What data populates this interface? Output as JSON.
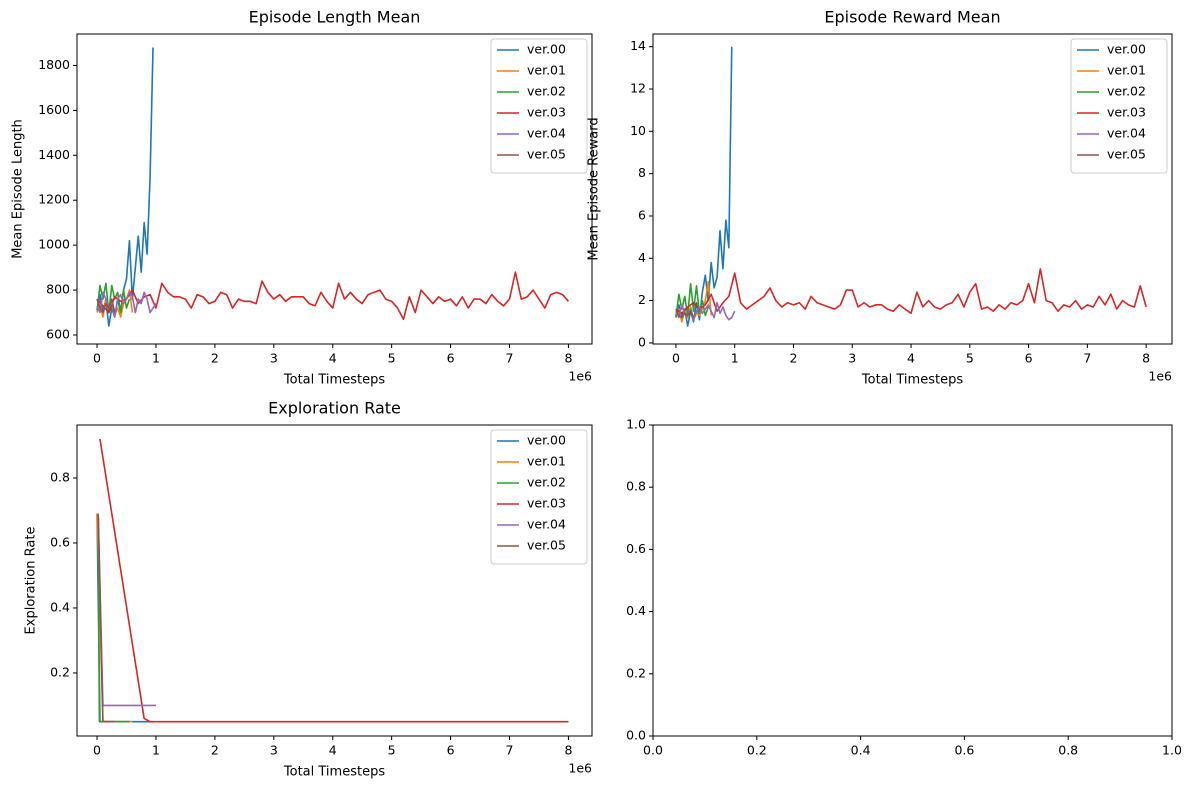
{
  "chart_data": [
    {
      "type": "line",
      "title": "Episode Length Mean",
      "xlabel": "Total Timesteps",
      "ylabel": "Mean Episode Length",
      "x_offset_label": "1e6",
      "xlim": [
        -0.34,
        8.4
      ],
      "xticks": [
        0,
        1,
        2,
        3,
        4,
        5,
        6,
        7,
        8
      ],
      "ylim": [
        560,
        1940
      ],
      "yticks": [
        600,
        800,
        1000,
        1200,
        1400,
        1600,
        1800
      ],
      "legend": "upper right",
      "series": [
        {
          "name": "ver.00",
          "color": "#1f77b4",
          "x": [
            0,
            0.05,
            0.1,
            0.15,
            0.2,
            0.25,
            0.3,
            0.35,
            0.4,
            0.45,
            0.5,
            0.55,
            0.6,
            0.65,
            0.7,
            0.75,
            0.8,
            0.85,
            0.9,
            0.95
          ],
          "values": [
            710,
            780,
            700,
            760,
            640,
            720,
            680,
            760,
            700,
            800,
            850,
            1020,
            760,
            900,
            1040,
            880,
            1100,
            960,
            1300,
            1880
          ]
        },
        {
          "name": "ver.01",
          "color": "#ff7f0e",
          "x": [
            0,
            0.05,
            0.1,
            0.15,
            0.2,
            0.25,
            0.3,
            0.35,
            0.4,
            0.45,
            0.5,
            0.55,
            0.6
          ],
          "values": [
            700,
            740,
            680,
            760,
            700,
            740,
            690,
            720,
            680,
            740,
            760,
            800,
            700
          ]
        },
        {
          "name": "ver.02",
          "color": "#2ca02c",
          "x": [
            0,
            0.05,
            0.1,
            0.15,
            0.2,
            0.25,
            0.3,
            0.35,
            0.4,
            0.45,
            0.5,
            0.55
          ],
          "values": [
            710,
            820,
            760,
            830,
            700,
            820,
            760,
            790,
            700,
            800,
            720,
            760
          ]
        },
        {
          "name": "ver.03",
          "color": "#d62728",
          "x": [
            0,
            0.1,
            0.2,
            0.3,
            0.4,
            0.5,
            0.6,
            0.7,
            0.8,
            0.9,
            1,
            1.1,
            1.2,
            1.3,
            1.4,
            1.5,
            1.6,
            1.7,
            1.8,
            1.9,
            2,
            2.1,
            2.2,
            2.3,
            2.4,
            2.5,
            2.6,
            2.7,
            2.8,
            2.9,
            3,
            3.1,
            3.2,
            3.3,
            3.4,
            3.5,
            3.6,
            3.7,
            3.8,
            3.9,
            4,
            4.1,
            4.2,
            4.3,
            4.4,
            4.5,
            4.6,
            4.7,
            4.8,
            4.9,
            5,
            5.1,
            5.2,
            5.3,
            5.4,
            5.5,
            5.6,
            5.7,
            5.8,
            5.9,
            6,
            6.1,
            6.2,
            6.3,
            6.4,
            6.5,
            6.6,
            6.7,
            6.8,
            6.9,
            7,
            7.1,
            7.2,
            7.3,
            7.4,
            7.5,
            7.6,
            7.7,
            7.8,
            7.9,
            8
          ],
          "values": [
            760,
            730,
            700,
            770,
            750,
            760,
            800,
            740,
            770,
            780,
            720,
            830,
            790,
            770,
            770,
            760,
            720,
            780,
            770,
            740,
            750,
            790,
            780,
            720,
            760,
            750,
            750,
            740,
            840,
            790,
            760,
            780,
            750,
            770,
            770,
            770,
            740,
            730,
            790,
            750,
            720,
            830,
            760,
            790,
            760,
            740,
            780,
            790,
            800,
            760,
            750,
            720,
            670,
            770,
            700,
            800,
            770,
            740,
            770,
            750,
            760,
            730,
            770,
            720,
            760,
            760,
            740,
            780,
            750,
            730,
            760,
            880,
            760,
            770,
            800,
            760,
            720,
            780,
            790,
            780,
            750
          ]
        },
        {
          "name": "ver.04",
          "color": "#9467bd",
          "x": [
            0,
            0.05,
            0.1,
            0.15,
            0.2,
            0.25,
            0.3,
            0.35,
            0.4,
            0.45,
            0.5,
            0.55,
            0.6,
            0.65,
            0.7,
            0.75,
            0.8,
            0.85,
            0.9,
            0.95,
            1
          ],
          "values": [
            730,
            700,
            790,
            760,
            720,
            750,
            680,
            760,
            780,
            740,
            760,
            790,
            770,
            700,
            760,
            740,
            790,
            760,
            700,
            720,
            740
          ]
        },
        {
          "name": "ver.05",
          "color": "#8c564b",
          "x": [
            0,
            0.05,
            0.1,
            0.15,
            0.2,
            0.25,
            0.3
          ],
          "values": [
            760,
            720,
            700,
            740,
            720,
            760,
            700
          ]
        }
      ]
    },
    {
      "type": "line",
      "title": "Episode Reward Mean",
      "xlabel": "Total Timesteps",
      "ylabel": "Mean Episode Reward",
      "x_offset_label": "1e6",
      "xlim": [
        -0.39,
        8.44
      ],
      "xticks": [
        0,
        1,
        2,
        3,
        4,
        5,
        6,
        7,
        8
      ],
      "ylim": [
        -0.05,
        14.6
      ],
      "yticks": [
        0,
        2,
        4,
        6,
        8,
        10,
        12,
        14
      ],
      "legend": "upper right",
      "series": [
        {
          "name": "ver.00",
          "color": "#1f77b4",
          "x": [
            0,
            0.05,
            0.1,
            0.15,
            0.2,
            0.25,
            0.3,
            0.35,
            0.4,
            0.45,
            0.5,
            0.55,
            0.6,
            0.65,
            0.7,
            0.75,
            0.8,
            0.85,
            0.9,
            0.95
          ],
          "values": [
            1.3,
            1.8,
            1.2,
            1.6,
            0.8,
            1.5,
            1.0,
            1.9,
            1.1,
            2.4,
            3.2,
            2.0,
            3.8,
            2.6,
            3.1,
            5.3,
            3.5,
            5.8,
            4.5,
            14.0
          ]
        },
        {
          "name": "ver.01",
          "color": "#ff7f0e",
          "x": [
            0,
            0.05,
            0.1,
            0.15,
            0.2,
            0.25,
            0.3,
            0.35,
            0.4,
            0.45,
            0.5,
            0.55,
            0.6
          ],
          "values": [
            1.2,
            1.6,
            1.0,
            1.5,
            1.2,
            1.7,
            1.1,
            1.4,
            1.3,
            1.6,
            2.0,
            2.9,
            1.3
          ]
        },
        {
          "name": "ver.02",
          "color": "#2ca02c",
          "x": [
            0,
            0.05,
            0.1,
            0.15,
            0.2,
            0.25,
            0.3,
            0.35,
            0.4,
            0.45,
            0.5,
            0.55
          ],
          "values": [
            1.2,
            2.3,
            1.6,
            2.2,
            1.3,
            2.8,
            1.5,
            2.7,
            1.4,
            2.0,
            1.3,
            1.7
          ]
        },
        {
          "name": "ver.03",
          "color": "#d62728",
          "x": [
            0,
            0.1,
            0.2,
            0.3,
            0.4,
            0.5,
            0.6,
            0.7,
            0.8,
            0.9,
            1,
            1.1,
            1.2,
            1.3,
            1.4,
            1.5,
            1.6,
            1.7,
            1.8,
            1.9,
            2,
            2.1,
            2.2,
            2.3,
            2.4,
            2.5,
            2.6,
            2.7,
            2.8,
            2.9,
            3,
            3.1,
            3.2,
            3.3,
            3.4,
            3.5,
            3.6,
            3.7,
            3.8,
            3.9,
            4,
            4.1,
            4.2,
            4.3,
            4.4,
            4.5,
            4.6,
            4.7,
            4.8,
            4.9,
            5,
            5.1,
            5.2,
            5.3,
            5.4,
            5.5,
            5.6,
            5.7,
            5.8,
            5.9,
            6,
            6.1,
            6.2,
            6.3,
            6.4,
            6.5,
            6.6,
            6.7,
            6.8,
            6.9,
            7,
            7.1,
            7.2,
            7.3,
            7.4,
            7.5,
            7.6,
            7.7,
            7.8,
            7.9,
            8
          ],
          "values": [
            1.6,
            1.4,
            1.7,
            1.9,
            1.6,
            1.8,
            2.3,
            1.5,
            1.9,
            2.2,
            3.3,
            1.9,
            1.6,
            1.8,
            2.0,
            2.2,
            2.6,
            2.0,
            1.7,
            1.9,
            1.8,
            1.9,
            1.6,
            2.2,
            1.9,
            1.8,
            1.7,
            1.6,
            1.8,
            2.5,
            2.5,
            1.7,
            1.9,
            1.7,
            1.8,
            1.8,
            1.6,
            1.5,
            1.8,
            1.6,
            1.4,
            2.4,
            1.7,
            2.0,
            1.7,
            1.6,
            1.8,
            1.9,
            2.3,
            1.7,
            2.4,
            2.8,
            1.6,
            1.7,
            1.5,
            1.8,
            1.6,
            1.9,
            1.8,
            2.0,
            2.8,
            1.9,
            3.5,
            2.0,
            1.9,
            1.5,
            1.8,
            1.7,
            2.0,
            1.6,
            1.8,
            1.7,
            2.2,
            1.8,
            2.3,
            1.6,
            2.0,
            1.8,
            1.7,
            2.7,
            1.7
          ]
        },
        {
          "name": "ver.04",
          "color": "#9467bd",
          "x": [
            0,
            0.05,
            0.1,
            0.15,
            0.2,
            0.25,
            0.3,
            0.35,
            0.4,
            0.45,
            0.5,
            0.55,
            0.6,
            0.65,
            0.7,
            0.75,
            0.8,
            0.85,
            0.9,
            0.95,
            1
          ],
          "values": [
            1.5,
            1.2,
            1.8,
            1.4,
            1.3,
            1.6,
            1.1,
            1.5,
            1.7,
            1.4,
            1.6,
            1.8,
            1.5,
            1.2,
            1.9,
            1.4,
            1.7,
            1.3,
            1.1,
            1.2,
            1.5
          ]
        },
        {
          "name": "ver.05",
          "color": "#8c564b",
          "x": [
            0,
            0.05,
            0.1,
            0.15,
            0.2,
            0.25,
            0.3
          ],
          "values": [
            1.6,
            1.3,
            1.2,
            1.4,
            1.3,
            1.5,
            1.2
          ]
        }
      ]
    },
    {
      "type": "line",
      "title": "Exploration Rate",
      "xlabel": "Total Timesteps",
      "ylabel": "Exploration Rate",
      "x_offset_label": "1e6",
      "xlim": [
        -0.34,
        8.4
      ],
      "xticks": [
        0,
        1,
        2,
        3,
        4,
        5,
        6,
        7,
        8
      ],
      "ylim": [
        0.006,
        0.963
      ],
      "yticks": [
        0.2,
        0.4,
        0.6,
        0.8
      ],
      "legend": "upper right",
      "series": [
        {
          "name": "ver.00",
          "color": "#1f77b4",
          "x": [
            0,
            0.05,
            0.1,
            0.95
          ],
          "values": [
            0.69,
            0.05,
            0.05,
            0.05
          ]
        },
        {
          "name": "ver.01",
          "color": "#ff7f0e",
          "x": [
            0,
            0.1,
            0.6
          ],
          "values": [
            0.69,
            0.05,
            0.05
          ]
        },
        {
          "name": "ver.02",
          "color": "#2ca02c",
          "x": [
            0.02,
            0.04,
            0.55
          ],
          "values": [
            0.69,
            0.05,
            0.05
          ]
        },
        {
          "name": "ver.03",
          "color": "#d62728",
          "x": [
            0.05,
            0.8,
            0.9,
            8
          ],
          "values": [
            0.92,
            0.06,
            0.05,
            0.05
          ]
        },
        {
          "name": "ver.04",
          "color": "#9467bd",
          "x": [
            0.02,
            0.1,
            0.15,
            1
          ],
          "values": [
            0.69,
            0.1,
            0.1,
            0.1
          ]
        },
        {
          "name": "ver.05",
          "color": "#8c564b",
          "x": [
            0.02,
            0.1,
            0.3
          ],
          "values": [
            0.69,
            0.05,
            0.05
          ]
        }
      ]
    },
    {
      "type": "empty",
      "xlim": [
        0,
        1
      ],
      "ylim": [
        0,
        1
      ],
      "xticks": [
        {
          "value": 0,
          "label": "0.0"
        },
        {
          "value": 0.2,
          "label": "0.2"
        },
        {
          "value": 0.4,
          "label": "0.4"
        },
        {
          "value": 0.6,
          "label": "0.6"
        },
        {
          "value": 0.8,
          "label": "0.8"
        },
        {
          "value": 1,
          "label": "1.0"
        }
      ],
      "yticks": [
        {
          "value": 0,
          "label": "0.0"
        },
        {
          "value": 0.2,
          "label": "0.2"
        },
        {
          "value": 0.4,
          "label": "0.4"
        },
        {
          "value": 0.6,
          "label": "0.6"
        },
        {
          "value": 0.8,
          "label": "0.8"
        },
        {
          "value": 1,
          "label": "1.0"
        }
      ]
    }
  ]
}
